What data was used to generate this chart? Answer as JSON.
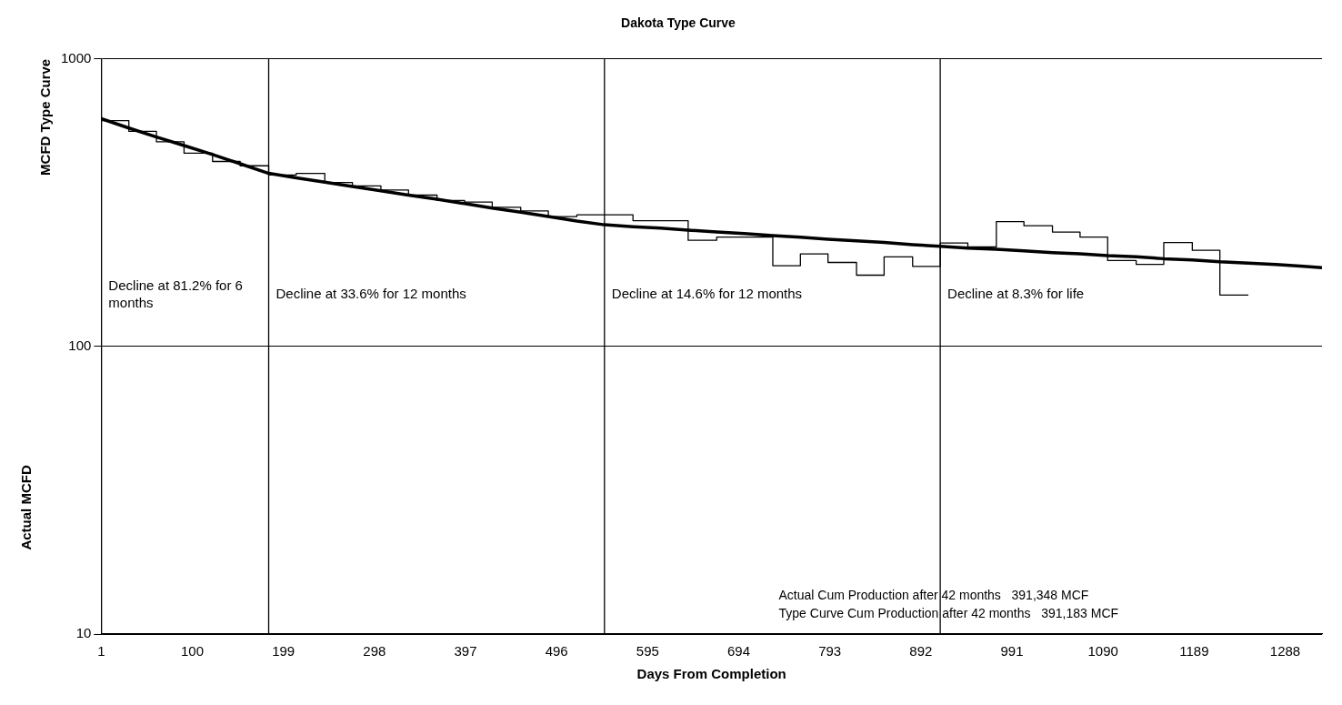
{
  "chart_data": {
    "type": "line",
    "title": "Dakota Type Curve",
    "xlabel": "Days From Completion",
    "ylabel": "MCFD Type Curve",
    "xlim": [
      1,
      1328
    ],
    "xticks": [
      1,
      100,
      199,
      298,
      397,
      496,
      595,
      694,
      793,
      892,
      991,
      1090,
      1189,
      1288
    ],
    "ylim": [
      10,
      1000
    ],
    "yticks": [
      10,
      100,
      1000
    ],
    "log": "y",
    "grid": "y",
    "legend": false,
    "marker": "none",
    "series": [
      {
        "type": "line",
        "color": "#000000",
        "x": [
          1,
          31,
          61,
          91,
          122,
          152,
          183,
          213,
          244,
          274,
          305,
          335,
          366,
          396,
          426,
          457,
          487,
          518,
          548,
          579,
          609,
          639,
          670,
          700,
          731,
          761,
          791,
          822,
          852,
          883,
          913,
          943,
          974,
          1004,
          1035,
          1065,
          1095,
          1126,
          1156,
          1187,
          1217,
          1248,
          1278,
          1308,
          1328
        ],
        "values": [
          620,
          575,
          535,
          500,
          465,
          432,
          400,
          386,
          373,
          360,
          348,
          336,
          325,
          314,
          303,
          293,
          283,
          273,
          265,
          261,
          258,
          254,
          250,
          247,
          243,
          240,
          236,
          233,
          230,
          226,
          223,
          220,
          218,
          215,
          212,
          210,
          207,
          205,
          202,
          200,
          197,
          195,
          193,
          190,
          188
        ]
      },
      {
        "type": "step",
        "color": "#000000",
        "x": [
          1,
          31,
          61,
          91,
          122,
          152,
          183,
          213,
          244,
          274,
          305,
          335,
          366,
          396,
          426,
          457,
          487,
          518,
          548,
          579,
          609,
          639,
          670,
          700,
          731,
          761,
          791,
          822,
          852,
          883,
          913,
          943,
          974,
          1004,
          1035,
          1065,
          1095,
          1126,
          1156,
          1187,
          1217,
          1248
        ],
        "values": [
          610,
          560,
          515,
          470,
          440,
          425,
          395,
          400,
          372,
          362,
          350,
          336,
          322,
          318,
          305,
          296,
          283,
          287,
          287,
          274,
          274,
          234,
          240,
          240,
          191,
          210,
          196,
          177,
          205,
          190,
          229,
          222,
          272,
          263,
          250,
          240,
          199,
          193,
          230,
          216,
          151,
          151
        ]
      }
    ],
    "ref_lines": [
      {
        "axis": "x",
        "value": 183,
        "color": "#000000"
      },
      {
        "axis": "x",
        "value": 548,
        "color": "#000000"
      },
      {
        "axis": "x",
        "value": 913,
        "color": "#000000"
      }
    ],
    "annotations": [
      "Actual MCFD",
      "Actual Cum Production after 42 months   391,348 MCF",
      "Type Curve Cum Production after 42 months   391,183 MCF",
      "Decline at 81.2% for 6 months",
      "Decline at 33.6% for 12 months",
      "Decline at 14.6% for 12 months",
      "Decline at 8.3% for life"
    ]
  }
}
